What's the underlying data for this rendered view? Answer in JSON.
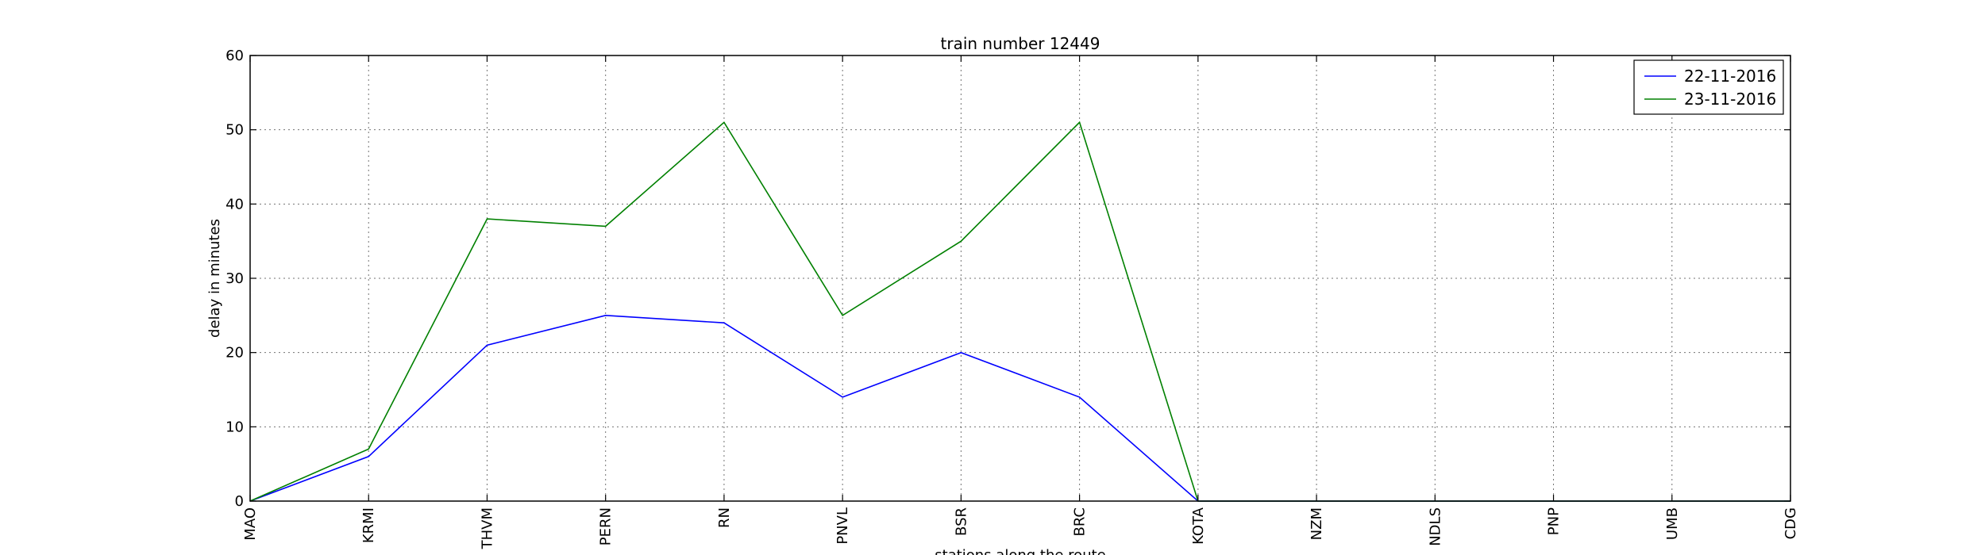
{
  "chart_data": {
    "type": "line",
    "title": "train number 12449",
    "xlabel": "stations along the route",
    "ylabel": "delay in minutes",
    "categories": [
      "MAO",
      "KRMI",
      "THVM",
      "PERN",
      "RN",
      "PNVL",
      "BSR",
      "BRC",
      "KOTA",
      "NZM",
      "NDLS",
      "PNP",
      "UMB",
      "CDG"
    ],
    "ylim": [
      0,
      60
    ],
    "yticks": [
      "0",
      "10",
      "20",
      "30",
      "40",
      "50",
      "60"
    ],
    "grid": true,
    "legend_position": "top-right",
    "series": [
      {
        "name": "22-11-2016",
        "color": "#0000ff",
        "values": [
          0,
          6,
          21,
          25,
          24,
          14,
          20,
          14,
          0,
          0,
          0,
          0,
          0,
          0
        ]
      },
      {
        "name": "23-11-2016",
        "color": "#008000",
        "values": [
          0,
          7,
          38,
          37,
          51,
          25,
          35,
          51,
          0,
          0,
          0,
          0,
          0,
          0
        ]
      }
    ]
  }
}
